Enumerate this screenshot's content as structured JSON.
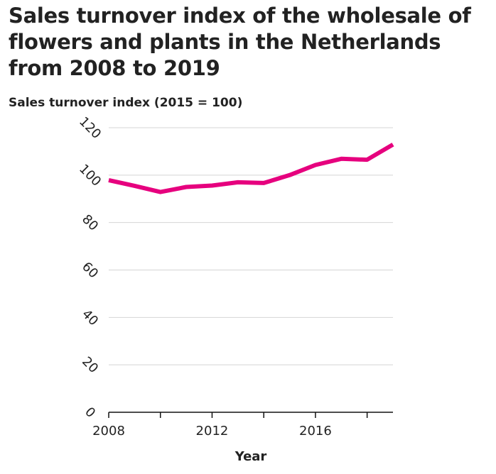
{
  "chart_data": {
    "type": "line",
    "title": "Sales turnover index of the wholesale of flowers and plants in the Netherlands from 2008 to 2019",
    "ylabel": "Sales turnover index (2015 = 100)",
    "xlabel": "Year",
    "x": [
      2008,
      2009,
      2010,
      2011,
      2012,
      2013,
      2014,
      2015,
      2016,
      2017,
      2018,
      2019
    ],
    "series": [
      {
        "values": [
          97.9,
          95.5,
          92.9,
          95.0,
          95.6,
          97.0,
          96.7,
          100.0,
          104.3,
          106.9,
          106.5,
          112.9
        ]
      }
    ],
    "xlim": [
      2008,
      2019
    ],
    "ylim": [
      0,
      120
    ],
    "yticks": [
      0,
      20,
      40,
      60,
      80,
      100,
      120
    ],
    "xticks": [
      2008,
      2010,
      2012,
      2014,
      2016,
      2018
    ],
    "xtick_labels": [
      "2008",
      "",
      "2012",
      "",
      "2016",
      ""
    ],
    "grid": true,
    "line_color": "#e6007e"
  }
}
